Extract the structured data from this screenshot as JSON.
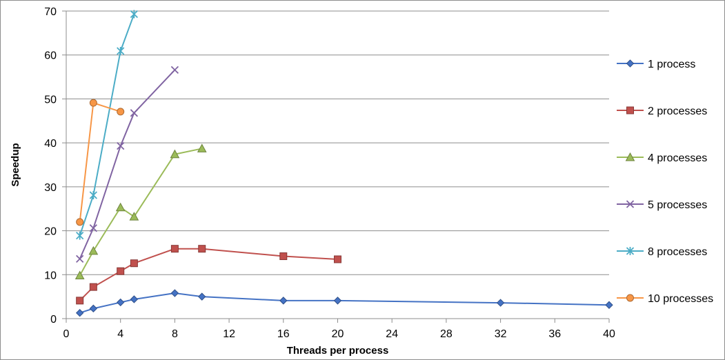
{
  "chart_data": {
    "type": "line",
    "title": "",
    "xlabel": "Threads per process",
    "ylabel": "Speedup",
    "xlim": [
      0,
      40
    ],
    "ylim": [
      0,
      70
    ],
    "x_ticks": [
      0,
      4,
      8,
      12,
      16,
      20,
      24,
      28,
      32,
      36,
      40
    ],
    "y_ticks": [
      0,
      10,
      20,
      30,
      40,
      50,
      60,
      70
    ],
    "grid": "horizontal",
    "legend_position": "right",
    "series": [
      {
        "name": "1 process",
        "color": "#4472C4",
        "marker": "diamond",
        "points": [
          [
            1,
            1.3
          ],
          [
            2,
            2.3
          ],
          [
            4,
            3.7
          ],
          [
            5,
            4.4
          ],
          [
            8,
            5.8
          ],
          [
            10,
            5.0
          ],
          [
            16,
            4.1
          ],
          [
            20,
            4.1
          ],
          [
            32,
            3.6
          ],
          [
            40,
            3.1
          ]
        ]
      },
      {
        "name": "2 processes",
        "color": "#C0504D",
        "marker": "square",
        "points": [
          [
            1,
            4.1
          ],
          [
            2,
            7.2
          ],
          [
            4,
            10.8
          ],
          [
            5,
            12.6
          ],
          [
            8,
            15.9
          ],
          [
            10,
            15.9
          ],
          [
            16,
            14.2
          ],
          [
            20,
            13.5
          ]
        ]
      },
      {
        "name": "4 processes",
        "color": "#9BBB59",
        "marker": "triangle",
        "points": [
          [
            1,
            9.8
          ],
          [
            2,
            15.4
          ],
          [
            4,
            25.3
          ],
          [
            5,
            23.2
          ],
          [
            8,
            37.4
          ],
          [
            10,
            38.7
          ]
        ]
      },
      {
        "name": "5 processes",
        "color": "#8064A2",
        "marker": "x",
        "points": [
          [
            1,
            13.6
          ],
          [
            2,
            20.6
          ],
          [
            4,
            39.3
          ],
          [
            5,
            46.8
          ],
          [
            8,
            56.6
          ]
        ]
      },
      {
        "name": "8 processes",
        "color": "#4BACC6",
        "marker": "star",
        "points": [
          [
            1,
            18.9
          ],
          [
            2,
            28.1
          ],
          [
            4,
            60.9
          ],
          [
            5,
            69.3
          ]
        ]
      },
      {
        "name": "10 processes",
        "color": "#F79646",
        "marker": "circle",
        "points": [
          [
            1,
            22.0
          ],
          [
            2,
            49.1
          ],
          [
            4,
            47.1
          ]
        ]
      }
    ]
  }
}
